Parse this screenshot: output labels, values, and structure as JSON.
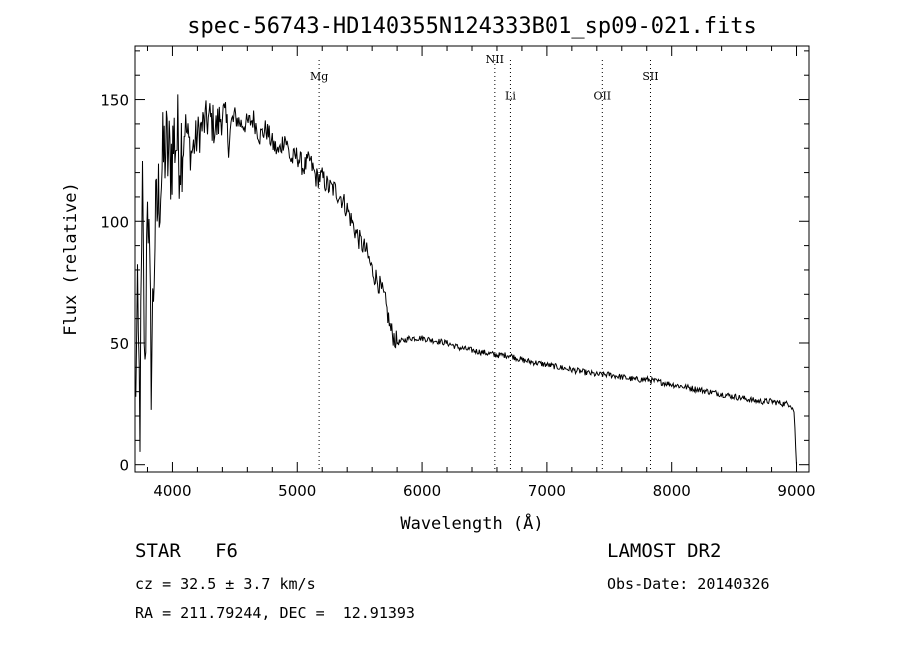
{
  "chart_data": {
    "type": "line",
    "title": "spec-56743-HD140355N124333B01_sp09-021.fits",
    "xlabel": "Wavelength (Å)",
    "ylabel": "Flux (relative)",
    "xlim": [
      3700,
      9100
    ],
    "ylim": [
      -3,
      172
    ],
    "x_ticks": [
      4000,
      5000,
      6000,
      7000,
      8000,
      9000
    ],
    "y_ticks": [
      0,
      50,
      100,
      150
    ],
    "grid": false,
    "legend": "none",
    "line_color": "#000000",
    "line_markers": [
      {
        "label": "Mg",
        "x": 5175,
        "label_y": 158
      },
      {
        "label": "NII",
        "x": 6583,
        "label_y": 165
      },
      {
        "label": "Li",
        "x": 6708,
        "label_y": 150
      },
      {
        "label": "OII",
        "x": 7444,
        "label_y": 150
      },
      {
        "label": "SII",
        "x": 7830,
        "label_y": 158
      }
    ],
    "series": [
      {
        "x": [
          3700,
          3720,
          3740,
          3760,
          3780,
          3800,
          3830,
          3860,
          3900,
          3940,
          3980,
          4020,
          4060,
          4100,
          4150,
          4200,
          4250,
          4300,
          4350,
          4400,
          4450,
          4500,
          4550,
          4600,
          4650,
          4700,
          4750,
          4800,
          4850,
          4900,
          4950,
          5000,
          5050,
          5100,
          5150,
          5200,
          5250,
          5300,
          5350,
          5400,
          5450,
          5500,
          5550,
          5600,
          5650,
          5700,
          5750,
          5800,
          5900,
          6000,
          6100,
          6200,
          6300,
          6400,
          6500,
          6600,
          6700,
          6800,
          6900,
          7000,
          7100,
          7200,
          7300,
          7400,
          7500,
          7600,
          7700,
          7800,
          7900,
          8000,
          8100,
          8200,
          8300,
          8400,
          8500,
          8600,
          8700,
          8800,
          8900,
          8950,
          8980,
          9000
        ],
        "values": [
          25,
          60,
          20,
          110,
          30,
          120,
          40,
          95,
          115,
          130,
          125,
          135,
          130,
          140,
          128,
          135,
          140,
          142,
          138,
          145,
          135,
          143,
          140,
          140,
          142,
          135,
          138,
          132,
          128,
          135,
          125,
          127,
          122,
          125,
          118,
          118,
          114,
          113,
          110,
          105,
          98,
          92,
          88,
          80,
          75,
          68,
          55,
          50,
          52,
          52,
          51,
          50,
          48,
          47,
          46,
          45,
          45,
          43,
          42,
          41,
          40,
          39,
          38,
          37,
          37,
          36,
          35,
          35,
          34,
          33,
          32,
          31,
          30,
          29,
          28,
          27,
          26,
          26,
          25,
          25,
          22,
          0
        ]
      }
    ]
  },
  "info": {
    "object_type": "STAR",
    "subclass": "F6",
    "survey": "LAMOST DR2",
    "cz": "cz = 32.5 ± 3.7 km/s",
    "obs_date": "Obs-Date: 20140326",
    "radec": "RA = 211.79244, DEC =  12.91393"
  }
}
